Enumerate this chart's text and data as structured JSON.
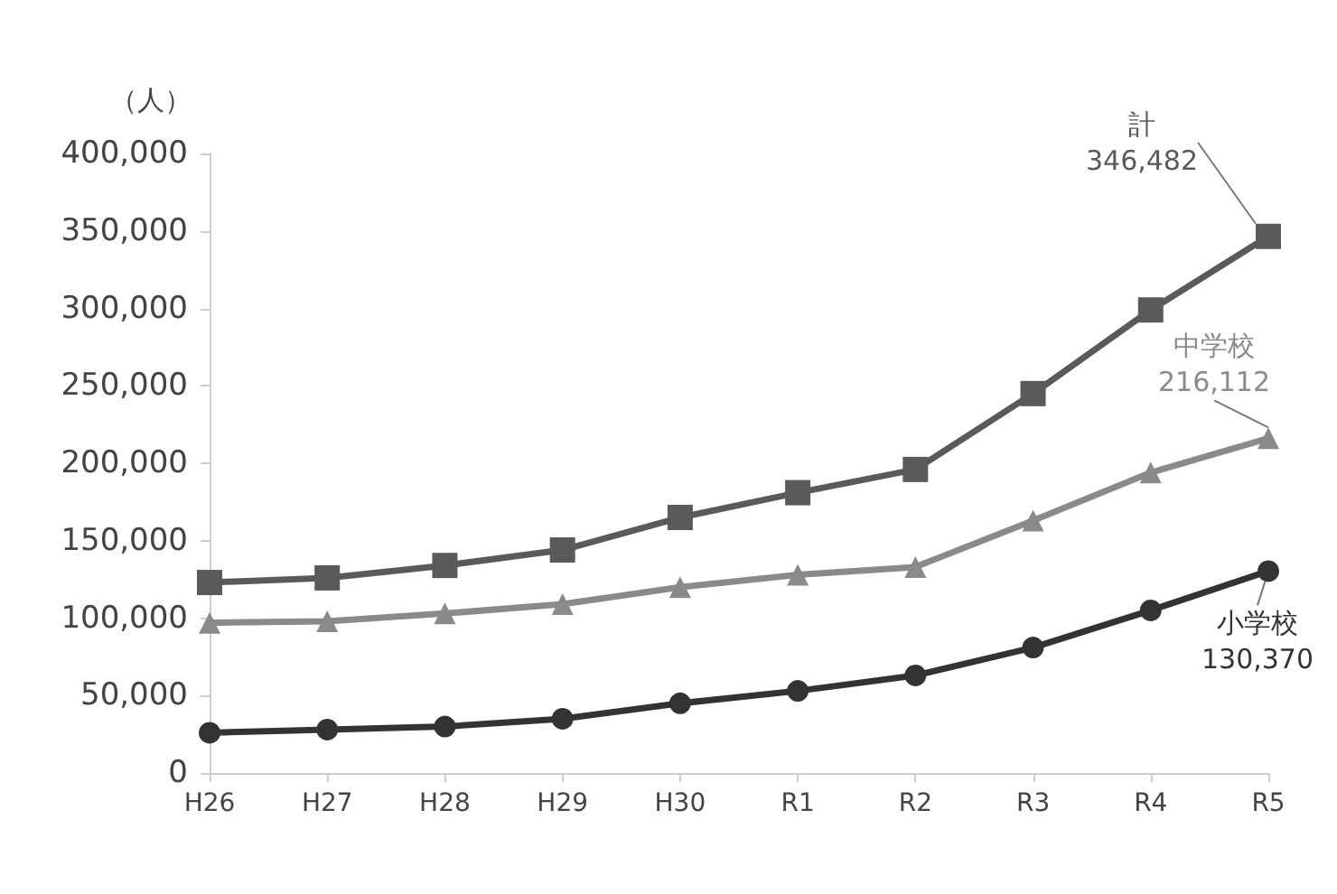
{
  "chart_data": {
    "type": "line",
    "ylabel": "（人）",
    "categories": [
      "H26",
      "H27",
      "H28",
      "H29",
      "H30",
      "R1",
      "R2",
      "R3",
      "R4",
      "R5"
    ],
    "series": [
      {
        "name": "計",
        "color": "#5a5a5a",
        "marker": "square",
        "values": [
          123000,
          126000,
          134000,
          144000,
          165000,
          181000,
          196000,
          245000,
          299000,
          346482
        ],
        "value_labels": [
          null,
          null,
          null,
          null,
          null,
          null,
          null,
          null,
          null,
          "346,482"
        ]
      },
      {
        "name": "中学校",
        "color": "#8a8a8a",
        "marker": "triangle",
        "values": [
          97000,
          98000,
          103000,
          109000,
          120000,
          128000,
          133000,
          163000,
          194000,
          216112
        ],
        "value_labels": [
          null,
          null,
          null,
          null,
          null,
          null,
          null,
          null,
          null,
          "216,112"
        ]
      },
      {
        "name": "小学校",
        "color": "#333333",
        "marker": "circle",
        "values": [
          26000,
          28000,
          30000,
          35000,
          45000,
          53000,
          63000,
          81000,
          105000,
          130370
        ],
        "value_labels": [
          null,
          null,
          null,
          null,
          null,
          null,
          null,
          null,
          null,
          "130,370"
        ]
      }
    ],
    "ylim": [
      0,
      400000
    ],
    "yticks": [
      0,
      {
        "value": 50000,
        "label": "50,000"
      },
      {
        "value": 100000,
        "label": "100,000"
      },
      {
        "value": 150000,
        "label": "150,000"
      },
      {
        "value": 200000,
        "label": "200,000"
      },
      {
        "value": 250000,
        "label": "250,000"
      },
      {
        "value": 300000,
        "label": "300,000"
      },
      {
        "value": 350000,
        "label": "350,000"
      },
      {
        "value": 400000,
        "label": "400,000"
      }
    ],
    "grid": false
  }
}
